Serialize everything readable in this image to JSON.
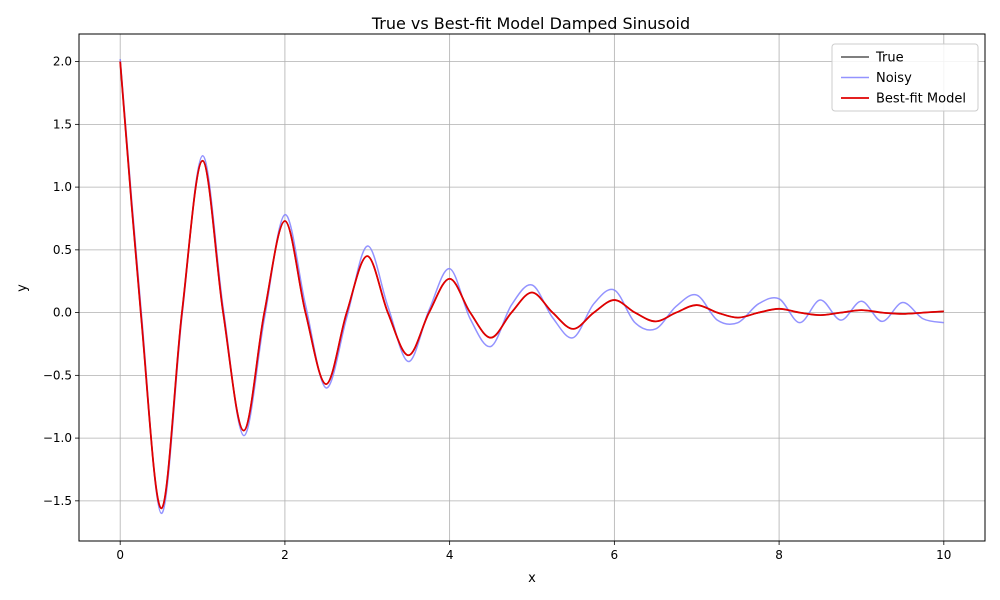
{
  "chart_data": {
    "type": "line",
    "title": "True vs Best-fit Model Damped Sinusoid",
    "xlabel": "x",
    "ylabel": "y",
    "xlim": [
      -0.5,
      10.5
    ],
    "ylim": [
      -1.82,
      2.22
    ],
    "x_ticks": [
      0,
      2,
      4,
      6,
      8,
      10
    ],
    "y_ticks": [
      -1.5,
      -1.0,
      -0.5,
      0.0,
      0.5,
      1.0,
      1.5,
      2.0
    ],
    "x_tick_labels": [
      "0",
      "2",
      "4",
      "6",
      "8",
      "10"
    ],
    "y_tick_labels": [
      "−1.5",
      "−1.0",
      "−0.5",
      "0.0",
      "0.5",
      "1.0",
      "1.5",
      "2.0"
    ],
    "grid": true,
    "legend_position": "top-right",
    "x": [
      0,
      0.25,
      0.5,
      0.75,
      1.0,
      1.25,
      1.5,
      1.75,
      2.0,
      2.25,
      2.5,
      2.75,
      3.0,
      3.25,
      3.5,
      3.75,
      4.0,
      4.25,
      4.5,
      4.75,
      5.0,
      5.25,
      5.5,
      5.75,
      6.0,
      6.25,
      6.5,
      6.75,
      7.0,
      7.25,
      7.5,
      7.75,
      8.0,
      8.25,
      8.5,
      8.75,
      9.0,
      9.25,
      9.5,
      9.75,
      10.0
    ],
    "series": [
      {
        "name": "True",
        "color": "#555555",
        "values": [
          2.0,
          0.0,
          -1.56,
          0.0,
          1.21,
          0.0,
          -0.94,
          0.0,
          0.73,
          0.0,
          -0.57,
          0.0,
          0.45,
          0.0,
          -0.34,
          0.0,
          0.27,
          0.0,
          -0.2,
          0.0,
          0.16,
          0.0,
          -0.13,
          0.0,
          0.1,
          0.0,
          -0.07,
          0.0,
          0.06,
          0.0,
          -0.04,
          0.0,
          0.03,
          0.0,
          -0.02,
          0.0,
          0.02,
          0.0,
          -0.01,
          0.0,
          0.01
        ]
      },
      {
        "name": "Noisy",
        "color": "#8080ff",
        "values": [
          2.02,
          0.05,
          -1.6,
          -0.03,
          1.25,
          0.04,
          -0.98,
          -0.05,
          0.78,
          0.06,
          -0.6,
          -0.04,
          0.53,
          0.05,
          -0.39,
          0.02,
          0.35,
          -0.05,
          -0.27,
          0.06,
          0.22,
          -0.04,
          -0.2,
          0.07,
          0.18,
          -0.08,
          -0.13,
          0.05,
          0.14,
          -0.06,
          -0.08,
          0.07,
          0.11,
          -0.08,
          0.1,
          -0.06,
          0.09,
          -0.07,
          0.08,
          -0.05,
          -0.08
        ]
      },
      {
        "name": "Best-fit Model",
        "color": "#e00000",
        "values": [
          2.0,
          0.0,
          -1.56,
          0.0,
          1.21,
          0.0,
          -0.94,
          0.0,
          0.73,
          0.0,
          -0.57,
          0.0,
          0.45,
          0.0,
          -0.34,
          0.0,
          0.27,
          0.0,
          -0.2,
          0.0,
          0.16,
          0.0,
          -0.13,
          0.0,
          0.1,
          0.0,
          -0.07,
          0.0,
          0.06,
          0.0,
          -0.04,
          0.0,
          0.03,
          0.0,
          -0.02,
          0.0,
          0.02,
          0.0,
          -0.01,
          0.0,
          0.01
        ]
      }
    ]
  }
}
